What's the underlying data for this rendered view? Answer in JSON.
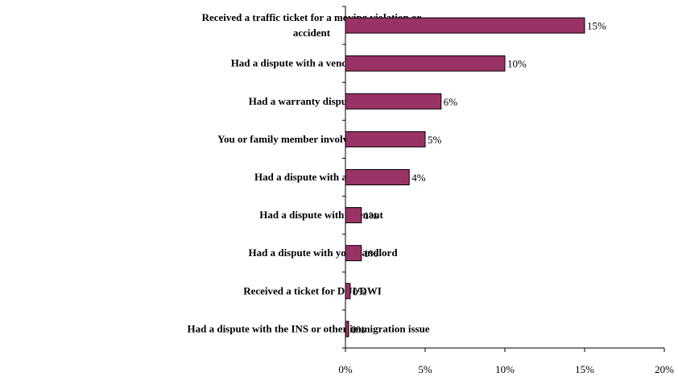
{
  "chart_data": {
    "type": "bar",
    "orientation": "horizontal",
    "categories": [
      [
        "Received a traffic ticket for a moving violation or",
        "accident"
      ],
      [
        "Had a dispute with a vendor or merchant"
      ],
      [
        "Had a warranty dispute"
      ],
      [
        "You or family member involved in a lawsuit"
      ],
      [
        "Had a dispute with a neighbor"
      ],
      [
        "Had a dispute with a tenant"
      ],
      [
        "Had a dispute with your landlord"
      ],
      [
        "Received a ticket for DUI/DWI"
      ],
      [
        "Had a dispute with the INS or other immigration issue"
      ]
    ],
    "values": [
      15,
      10,
      6,
      5,
      4,
      1,
      1,
      0.3,
      0.2
    ],
    "value_labels": [
      "15%",
      "10%",
      "6%",
      "5%",
      "4%",
      "1%",
      "1%",
      "0%",
      "0%"
    ],
    "x_ticks": [
      0,
      5,
      10,
      15,
      20
    ],
    "x_tick_labels": [
      "0%",
      "5%",
      "10%",
      "15%",
      "20%"
    ],
    "xlim": [
      0,
      20
    ],
    "bar_color": "#993366",
    "grid": false,
    "legend": "none"
  }
}
